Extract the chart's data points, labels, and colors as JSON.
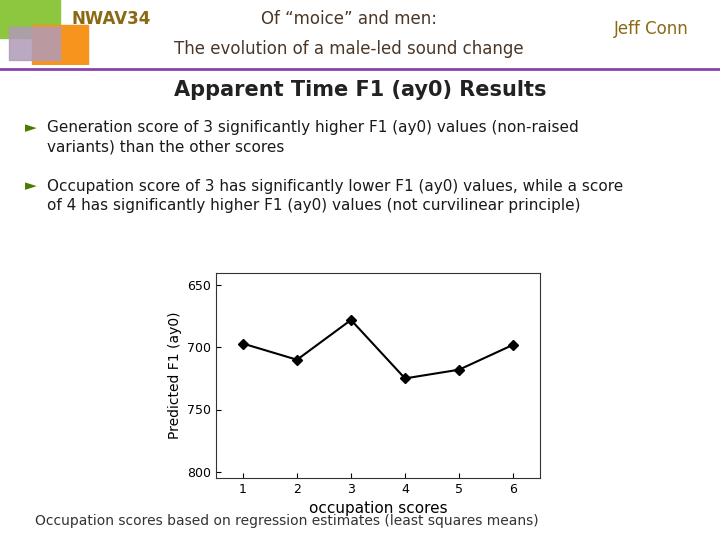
{
  "header_title_line1": "Of “moice” and men:",
  "header_title_line2": "The evolution of a male-led sound change",
  "header_left": "NWAV34",
  "header_right": "Jeff Conn",
  "slide_title": "Apparent Time F1 (ay0) Results",
  "bullet1": "Generation score of 3 significantly higher F1 (ay0) values (non-raised\nvariants) than the other scores",
  "bullet2": "Occupation score of 3 has significantly lower F1 (ay0) values, while a score\nof 4 has significantly higher F1 (ay0) values (not curvilinear principle)",
  "x_data": [
    1,
    2,
    3,
    4,
    5,
    6
  ],
  "y_data": [
    697,
    710,
    678,
    725,
    718,
    698
  ],
  "xlabel": "occupation scores",
  "ylabel": "Predicted F1 (ay0)",
  "ylim_top": 640,
  "ylim_bottom": 805,
  "xlim_left": 0.5,
  "xlim_right": 6.5,
  "yticks": [
    650,
    700,
    750,
    800
  ],
  "xticks": [
    1,
    2,
    3,
    4,
    5,
    6
  ],
  "bg_color": "#ffffff",
  "line_color": "#000000",
  "marker_style": "D",
  "marker_size": 5,
  "header_title_color": "#4a3728",
  "header_left_color": "#8b6914",
  "header_right_color": "#8b6914",
  "slide_title_color": "#222222",
  "bullet_color": "#1a1a1a",
  "bullet_arrow_color": "#4a7a00",
  "footer_text": "Occupation scores based on regression estimates (least squares means)",
  "footer_color": "#333333",
  "divider_color": "#8844aa",
  "logo_green": "#8dc63f",
  "logo_orange": "#f7941d",
  "logo_purple": "#b09ab8"
}
